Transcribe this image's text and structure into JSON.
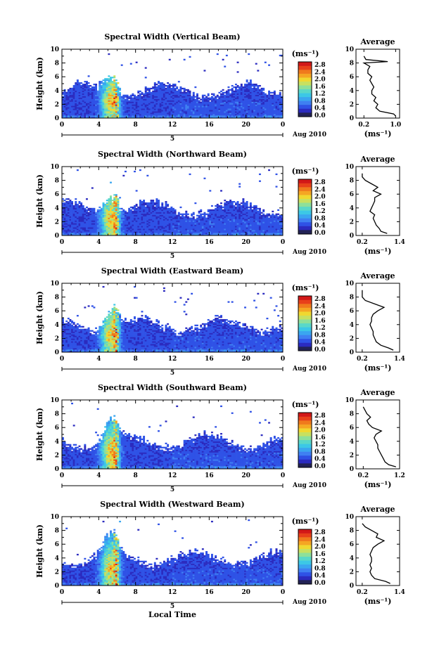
{
  "colors": {
    "colormap": [
      "#2b2bbf",
      "#2f52e6",
      "#3f80f2",
      "#3aa6f0",
      "#3cc8e6",
      "#5ad8c8",
      "#8ee09a",
      "#c8e060",
      "#f0d830",
      "#f5a623",
      "#f07a1c",
      "#e8401a",
      "#d21818"
    ],
    "bar_low": "#222255",
    "line": "#000000"
  },
  "shared": {
    "ylabel": "Height (km)",
    "month_label": "Aug 2010",
    "day_label": "5",
    "cb_unit": "(ms⁻¹)",
    "cb_ticks": [
      "2.8",
      "2.4",
      "2.0",
      "1.6",
      "1.2",
      "0.8",
      "0.4",
      "0.0"
    ],
    "xticks": [
      "0",
      "4",
      "8",
      "12",
      "16",
      "20",
      "0"
    ],
    "yticks": [
      "0",
      "2",
      "4",
      "6",
      "8",
      "10"
    ],
    "avg_title": "Average",
    "avg_xlabel": "(ms⁻¹)",
    "bottom_xlabel": "Local Time"
  },
  "chart_data": [
    {
      "type": "heatmap",
      "title": "Spectral Width (Vertical Beam)",
      "xlim": [
        0,
        24
      ],
      "ylim": [
        0,
        10
      ],
      "profile": {
        "xlim": [
          0.0,
          1.1
        ],
        "xticks": [
          "0.2",
          "1.0"
        ],
        "xtick_vals": [
          0.2,
          1.0
        ],
        "heights": [
          0.3,
          0.6,
          1,
          1.5,
          2,
          2.5,
          3,
          3.5,
          4,
          4.5,
          5,
          5.5,
          6,
          6.5,
          7,
          7.5,
          8,
          8.2,
          8.5,
          9
        ],
        "values": [
          1.0,
          0.95,
          0.6,
          0.5,
          0.55,
          0.45,
          0.5,
          0.4,
          0.4,
          0.45,
          0.4,
          0.35,
          0.4,
          0.3,
          0.3,
          0.35,
          0.2,
          0.8,
          0.25,
          0.2
        ]
      }
    },
    {
      "type": "heatmap",
      "title": "Spectral Width (Northward Beam)",
      "xlim": [
        0,
        24
      ],
      "ylim": [
        0,
        10
      ],
      "profile": {
        "xlim": [
          0.0,
          1.4
        ],
        "xticks": [
          "0.2",
          "1.4"
        ],
        "xtick_vals": [
          0.2,
          1.4
        ],
        "heights": [
          0.3,
          0.6,
          1,
          1.5,
          2,
          2.5,
          3,
          3.5,
          4,
          4.5,
          5,
          5.5,
          6,
          6.5,
          7,
          7.5,
          8,
          8.5,
          9
        ],
        "values": [
          1.0,
          0.8,
          0.75,
          0.65,
          0.6,
          0.55,
          0.6,
          0.45,
          0.5,
          0.55,
          0.6,
          0.6,
          0.8,
          0.55,
          0.7,
          0.5,
          0.3,
          0.2,
          0.2
        ]
      }
    },
    {
      "type": "heatmap",
      "title": "Spectral Width (Eastward Beam)",
      "xlim": [
        0,
        24
      ],
      "ylim": [
        0,
        10
      ],
      "profile": {
        "xlim": [
          0.0,
          1.4
        ],
        "xticks": [
          "0.2",
          "1.4"
        ],
        "xtick_vals": [
          0.2,
          1.4
        ],
        "heights": [
          0.3,
          0.6,
          1,
          1.5,
          2,
          2.5,
          3,
          3.5,
          4,
          4.5,
          5,
          5.5,
          6,
          6.5,
          7,
          7.5,
          8,
          8.5,
          9
        ],
        "values": [
          1.2,
          1.05,
          0.8,
          0.65,
          0.6,
          0.55,
          0.55,
          0.5,
          0.45,
          0.5,
          0.5,
          0.55,
          0.7,
          0.9,
          0.6,
          0.3,
          0.2,
          0.2,
          0.2
        ]
      }
    },
    {
      "type": "heatmap",
      "title": "Spectral Width (Southward Beam)",
      "xlim": [
        0,
        24
      ],
      "ylim": [
        0,
        10
      ],
      "profile": {
        "xlim": [
          0.0,
          1.2
        ],
        "xticks": [
          "0.2",
          "1.2"
        ],
        "xtick_vals": [
          0.2,
          1.2
        ],
        "heights": [
          0.3,
          0.6,
          1,
          1.5,
          2,
          2.5,
          3,
          3.5,
          4,
          4.5,
          5,
          5.5,
          6,
          6.5,
          7,
          7.5,
          8,
          8.5,
          9
        ],
        "values": [
          1.1,
          0.9,
          0.8,
          0.75,
          0.7,
          0.65,
          0.6,
          0.6,
          0.55,
          0.5,
          0.55,
          0.7,
          0.45,
          0.35,
          0.3,
          0.4,
          0.3,
          0.25,
          0.2
        ]
      }
    },
    {
      "type": "heatmap",
      "title": "Spectral Width (Westward Beam)",
      "xlim": [
        0,
        24
      ],
      "ylim": [
        0,
        10
      ],
      "profile": {
        "xlim": [
          0.0,
          1.4
        ],
        "xticks": [
          "0.2",
          "1.4"
        ],
        "xtick_vals": [
          0.2,
          1.4
        ],
        "heights": [
          0.3,
          0.6,
          1,
          1.5,
          2,
          2.5,
          3,
          3.5,
          4,
          4.5,
          5,
          5.5,
          6,
          6.5,
          7,
          7.5,
          8,
          8.5,
          9
        ],
        "values": [
          1.1,
          0.95,
          0.6,
          0.5,
          0.45,
          0.5,
          0.45,
          0.5,
          0.5,
          0.45,
          0.5,
          0.55,
          0.7,
          0.9,
          0.65,
          0.7,
          0.5,
          0.3,
          0.2
        ]
      }
    }
  ]
}
